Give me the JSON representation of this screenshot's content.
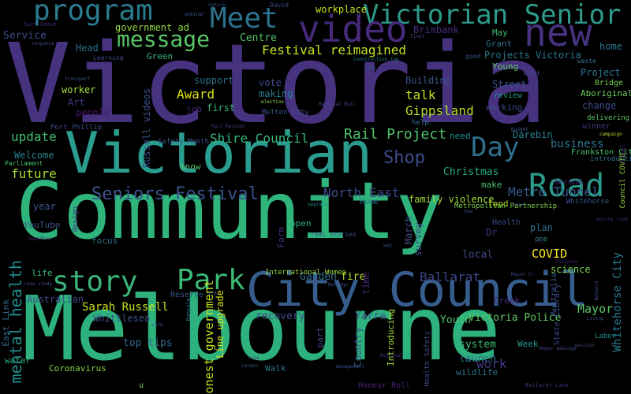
{
  "words": [
    {
      "text": "Victoria",
      "color": "#46327e"
    },
    {
      "text": "Community",
      "color": "#2fb47c"
    },
    {
      "text": "Melbourne",
      "color": "#2db27d"
    },
    {
      "text": "Victorian",
      "color": "#2a9d8f"
    },
    {
      "text": "City Council",
      "color": "#365d8d"
    },
    {
      "text": "new",
      "color": "#46327e"
    },
    {
      "text": "Victorian Senior",
      "color": "#2d9a8a"
    },
    {
      "text": "video",
      "color": "#472a7a"
    },
    {
      "text": "program",
      "color": "#2a7b8e"
    },
    {
      "text": "Meet",
      "color": "#2c728e"
    },
    {
      "text": "message",
      "color": "#58c765"
    },
    {
      "text": "Road",
      "color": "#2a9b8a"
    },
    {
      "text": "Day",
      "color": "#2e6f8e"
    },
    {
      "text": "story",
      "color": "#3ab37a"
    },
    {
      "text": "Park",
      "color": "#3bbb75"
    },
    {
      "text": "Seniors Festival",
      "color": "#3b528b"
    },
    {
      "text": "Festival reimagined",
      "color": "#c8e020"
    },
    {
      "text": "Rail Project",
      "color": "#4ec36b"
    },
    {
      "text": "Shire Council",
      "color": "#32b67a"
    },
    {
      "text": "Award",
      "color": "#d8e219"
    },
    {
      "text": "talk",
      "color": "#c0df25"
    },
    {
      "text": "Gippsland",
      "color": "#b5de2b"
    },
    {
      "text": "update",
      "color": "#42be71"
    },
    {
      "text": "future",
      "color": "#a8db34"
    },
    {
      "text": "North East",
      "color": "#3e4a89"
    },
    {
      "text": "Metro Tunnel",
      "color": "#38588c"
    },
    {
      "text": "business",
      "color": "#2c738e"
    },
    {
      "text": "Darebin",
      "color": "#26828e"
    },
    {
      "text": "Christmas",
      "color": "#25ab82"
    },
    {
      "text": "family violence",
      "color": "#a2da37"
    },
    {
      "text": "COVID",
      "color": "#fde725"
    },
    {
      "text": "Ballarat",
      "color": "#3f4889"
    },
    {
      "text": "Victoria Police",
      "color": "#5ec962"
    },
    {
      "text": "system",
      "color": "#3dbc74"
    },
    {
      "text": "launch",
      "color": "#2c728e"
    },
    {
      "text": "Sarah Russell",
      "color": "#cae11f"
    },
    {
      "text": "Whittlesea",
      "color": "#3b528b"
    },
    {
      "text": "recovery",
      "color": "#3e4c8a"
    },
    {
      "text": "Yarra",
      "color": "#39568c"
    },
    {
      "text": "top tips",
      "color": "#31688e"
    },
    {
      "text": "Mayor",
      "color": "#5ac864"
    },
    {
      "text": "Youth",
      "color": "#4cc26c"
    },
    {
      "text": "work",
      "color": "#443a83"
    },
    {
      "text": "Australian",
      "color": "#3f4788"
    },
    {
      "text": "Garden",
      "color": "#2f6c8e"
    },
    {
      "text": "fire",
      "color": "#b8de29"
    },
    {
      "text": "Centre",
      "color": "#4fc46a"
    },
    {
      "text": "Service",
      "color": "#3e4a89"
    },
    {
      "text": "Welcome",
      "color": "#25838e"
    },
    {
      "text": "Building",
      "color": "#3a548c"
    },
    {
      "text": "worker",
      "color": "#a0da39"
    },
    {
      "text": "people",
      "color": "#481b6d"
    },
    {
      "text": "Art",
      "color": "#443a83"
    },
    {
      "text": "support",
      "color": "#2c728e"
    },
    {
      "text": "vote",
      "color": "#3f4889"
    },
    {
      "text": "making",
      "color": "#287c8e"
    },
    {
      "text": "first",
      "color": "#31b57b"
    },
    {
      "text": "job",
      "color": "#482475"
    },
    {
      "text": "change",
      "color": "#3e4c8a"
    },
    {
      "text": "Projects Victoria",
      "color": "#2a788e"
    },
    {
      "text": "Brimbank",
      "color": "#472d7b"
    },
    {
      "text": "workplace",
      "color": "#c5e021"
    },
    {
      "text": "Head",
      "color": "#2d708e"
    },
    {
      "text": "Green",
      "color": "#3aba76"
    },
    {
      "text": "government ad",
      "color": "#93d741"
    },
    {
      "text": "May",
      "color": "#3dbc74"
    },
    {
      "text": "home",
      "color": "#2c738e"
    },
    {
      "text": "Street",
      "color": "#39568c"
    },
    {
      "text": "Young",
      "color": "#5cc863"
    },
    {
      "text": "Grant",
      "color": "#2c728e"
    },
    {
      "text": "review",
      "color": "#1f998a"
    },
    {
      "text": "working",
      "color": "#3e4989"
    },
    {
      "text": "Project",
      "color": "#2a788e"
    },
    {
      "text": "Bridge",
      "color": "#70cf57"
    },
    {
      "text": "Aboriginal",
      "color": "#6ccd5a"
    },
    {
      "text": "need",
      "color": "#21918c"
    },
    {
      "text": "know",
      "color": "#54c568"
    },
    {
      "text": "make",
      "color": "#4ac16d"
    },
    {
      "text": "year",
      "color": "#3b528b"
    },
    {
      "text": "YouTube",
      "color": "#3b528b"
    },
    {
      "text": "focus",
      "color": "#2e6e8e"
    },
    {
      "text": "Dr",
      "color": "#46337e"
    },
    {
      "text": "plan",
      "color": "#2c728e"
    },
    {
      "text": "local",
      "color": "#3e4a89"
    },
    {
      "text": "science",
      "color": "#7ad151"
    },
    {
      "text": "open",
      "color": "#2fb47c"
    },
    {
      "text": "food",
      "color": "#b2dd2d"
    },
    {
      "text": "Hume",
      "color": "#287d8e"
    },
    {
      "text": "Health",
      "color": "#3e4a89"
    },
    {
      "text": "wildlife",
      "color": "#2a788e"
    },
    {
      "text": "Reserve",
      "color": "#3b528b"
    },
    {
      "text": "Creek",
      "color": "#482878"
    },
    {
      "text": "Week",
      "color": "#2a9b8a"
    },
    {
      "text": "life",
      "color": "#3bbb75"
    },
    {
      "text": "water",
      "color": "#2fb47c"
    },
    {
      "text": "Walk",
      "color": "#2c728e"
    },
    {
      "text": "Coronavirus",
      "color": "#86d549"
    },
    {
      "text": "Russell videos",
      "color": "#3b528b"
    },
    {
      "text": "Honest government",
      "color": "#c2df23"
    },
    {
      "text": "Line upgrade",
      "color": "#d0e11c"
    },
    {
      "text": "mental health",
      "color": "#228c8d"
    },
    {
      "text": "East Link",
      "color": "#31688e"
    },
    {
      "text": "State Library",
      "color": "#3e4a89"
    },
    {
      "text": "Whitehorse City",
      "color": "#2a788e"
    },
    {
      "text": "Australia",
      "color": "#39568c"
    },
    {
      "text": "survey",
      "color": "#3b528b"
    },
    {
      "text": "March",
      "color": "#3e4a89"
    },
    {
      "text": "Farm",
      "color": "#46327e"
    },
    {
      "text": "Introducing",
      "color": "#a5db36"
    },
    {
      "text": "Country",
      "color": "#3b528b"
    },
    {
      "text": "time",
      "color": "#482677"
    },
    {
      "text": "part",
      "color": "#3f4788"
    },
    {
      "text": "Shop",
      "color": "#3e4c8a"
    },
    {
      "text": "u",
      "color": "#75d054"
    },
    {
      "text": "Honour Roll",
      "color": "#482475"
    },
    {
      "text": "Ballarat Line",
      "color": "#46327e"
    },
    {
      "text": "Metropolitan Partnership",
      "color": "#7fd34e"
    },
    {
      "text": "Second",
      "color": "#472c7a"
    },
    {
      "text": "Frankston City",
      "color": "#4ac16d"
    },
    {
      "text": "introduction",
      "color": "#2c728e"
    },
    {
      "text": "winner",
      "color": "#46327e"
    },
    {
      "text": "delivering",
      "color": "#5ec962"
    },
    {
      "text": "campaign",
      "color": "#b5de2b"
    },
    {
      "text": "Whitehorse",
      "color": "#38598c"
    },
    {
      "text": "Council COVID",
      "color": "#9bd93c"
    },
    {
      "text": "School",
      "color": "#482878"
    },
    {
      "text": "session",
      "color": "#3e4a89"
    },
    {
      "text": "Mayor message",
      "color": "#3f4788"
    },
    {
      "text": "Labor",
      "color": "#20928c"
    },
    {
      "text": "one",
      "color": "#21918c"
    },
    {
      "text": "help",
      "color": "#2c728e"
    },
    {
      "text": "Parliament",
      "color": "#4ac16d"
    },
    {
      "text": "Surf Coast",
      "color": "#472d7b"
    },
    {
      "text": "Melton City",
      "color": "#3b528b"
    },
    {
      "text": "election",
      "color": "#95d840"
    },
    {
      "text": "Rail Revival",
      "color": "#46327e"
    },
    {
      "text": "Safety Month",
      "color": "#3a548c"
    },
    {
      "text": "upgrade",
      "color": "#21918c"
    },
    {
      "text": "Bendigo",
      "color": "#3b528b"
    },
    {
      "text": "International Women",
      "color": "#9dd93b"
    },
    {
      "text": "David",
      "color": "#3e4a89"
    },
    {
      "text": "webinar",
      "color": "#39568c"
    },
    {
      "text": "nature",
      "color": "#3b528b"
    },
    {
      "text": "response",
      "color": "#3e4a89"
    },
    {
      "text": "Learning",
      "color": "#3e4a89"
    },
    {
      "text": "Construction top",
      "color": "#2a788e"
    },
    {
      "text": "Regional Rail",
      "color": "#3e4a89"
    },
    {
      "text": "transport",
      "color": "#3b528b"
    },
    {
      "text": "Port Phillip",
      "color": "#3e4a89"
    },
    {
      "text": "design",
      "color": "#46327e"
    },
    {
      "text": "Banyule",
      "color": "#2c728e"
    },
    {
      "text": "care",
      "color": "#3b528b"
    },
    {
      "text": "bushfire",
      "color": "#482878"
    },
    {
      "text": "case study",
      "color": "#3e4a89"
    },
    {
      "text": "role",
      "color": "#472d7b"
    },
    {
      "text": "career",
      "color": "#3b528b"
    },
    {
      "text": "CFA",
      "color": "#3e4a89"
    },
    {
      "text": "real stories",
      "color": "#3b528b"
    },
    {
      "text": "tour",
      "color": "#3b528b"
    },
    {
      "text": "police road",
      "color": "#472d7b"
    },
    {
      "text": "kid",
      "color": "#482878"
    },
    {
      "text": "Network",
      "color": "#3e4a89"
    },
    {
      "text": "Living",
      "color": "#3b528b"
    },
    {
      "text": "Health Safety",
      "color": "#3e4a89"
    },
    {
      "text": "management",
      "color": "#3b528b"
    },
    {
      "text": "Regional",
      "color": "#46327e"
    },
    {
      "text": "Mayor Cr",
      "color": "#3e4a89"
    },
    {
      "text": "Children",
      "color": "#482475"
    },
    {
      "text": "way",
      "color": "#3b528b"
    },
    {
      "text": "now",
      "color": "#3e4a89"
    },
    {
      "text": "Budget",
      "color": "#3b528b"
    },
    {
      "text": "West",
      "color": "#3e4a89"
    },
    {
      "text": "waste",
      "color": "#2c728e"
    },
    {
      "text": "back",
      "color": "#3b528b"
    },
    {
      "text": "good",
      "color": "#3b528b"
    },
    {
      "text": "final",
      "color": "#3e4a89"
    },
    {
      "text": "works highlights",
      "color": "#3b528b"
    }
  ]
}
